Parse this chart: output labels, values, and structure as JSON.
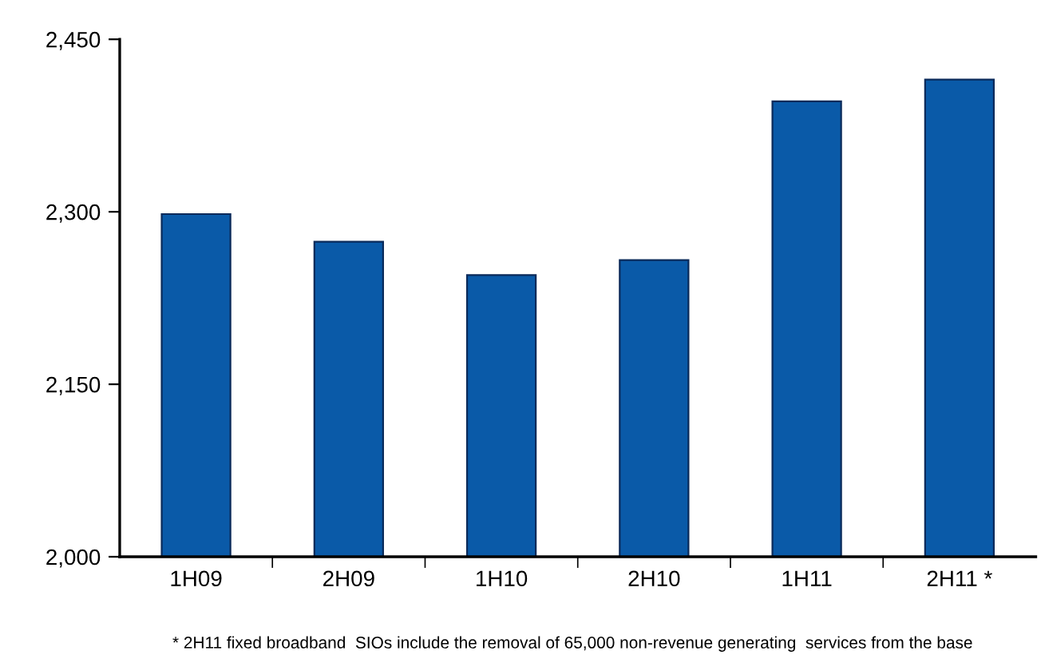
{
  "chart_data": {
    "type": "bar",
    "categories": [
      "1H09",
      "2H09",
      "1H10",
      "2H10",
      "1H11",
      "2H11 *"
    ],
    "values": [
      2298,
      2274,
      2245,
      2258,
      2396,
      2415
    ],
    "color": "#0a5aa8",
    "ylim": [
      2000,
      2450
    ],
    "yticks": [
      {
        "value": 2000,
        "label": "2,000"
      },
      {
        "value": 2150,
        "label": "2,150"
      },
      {
        "value": 2300,
        "label": "2,300"
      },
      {
        "value": 2450,
        "label": "2,450"
      }
    ],
    "grid": false,
    "legend": false,
    "annotations": [
      "* 2H11 fixed broadband  SIOs include the removal of 65,000 non-revenue generating  services from the base"
    ]
  }
}
